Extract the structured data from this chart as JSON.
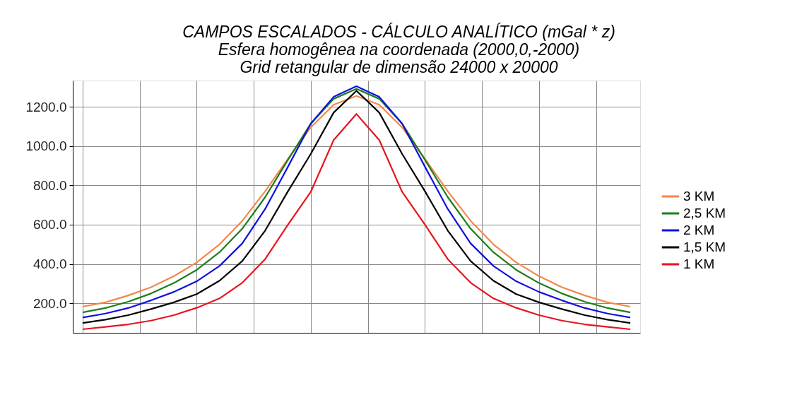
{
  "chart_data": {
    "type": "line",
    "title": "CAMPOS ESCALADOS - CÁLCULO ANALÍTICO (mGal * z)",
    "subtitle": "Esfera homogênea na coordenada (2000,0,-2000)\nGrid retangular de dimensão 24000 x 20000",
    "categories": [
      null,
      null,
      null,
      null,
      null,
      null,
      null,
      null,
      null,
      null,
      null,
      null,
      null,
      null,
      null,
      null,
      null,
      null,
      null,
      null,
      null,
      null,
      null,
      null,
      null
    ],
    "series": [
      {
        "name": "3 KM",
        "color": "#f4874b",
        "values": [
          183,
          205,
          240,
          282,
          338,
          408,
          500,
          620,
          770,
          935,
          1095,
          1210,
          1255,
          1210,
          1095,
          935,
          770,
          620,
          500,
          408,
          338,
          282,
          240,
          205,
          183
        ]
      },
      {
        "name": "2,5 KM",
        "color": "#1a7f1a",
        "values": [
          154,
          176,
          208,
          250,
          303,
          370,
          460,
          580,
          740,
          930,
          1114,
          1240,
          1291,
          1240,
          1114,
          930,
          740,
          580,
          460,
          370,
          303,
          250,
          208,
          176,
          154
        ]
      },
      {
        "name": "2 KM",
        "color": "#1010e0",
        "values": [
          128,
          148,
          176,
          215,
          258,
          312,
          390,
          505,
          680,
          895,
          1114,
          1250,
          1304,
          1250,
          1114,
          895,
          680,
          505,
          390,
          312,
          258,
          215,
          176,
          148,
          128
        ]
      },
      {
        "name": "1,5 KM",
        "color": "#000000",
        "values": [
          100,
          117,
          140,
          171,
          205,
          247,
          315,
          415,
          570,
          770,
          960,
          1170,
          1281,
          1170,
          960,
          770,
          570,
          415,
          315,
          247,
          205,
          171,
          140,
          117,
          100
        ]
      },
      {
        "name": "1 KM",
        "color": "#e8141e",
        "values": [
          68,
          80,
          93,
          112,
          140,
          177,
          225,
          305,
          425,
          600,
          767,
          1030,
          1163,
          1030,
          767,
          600,
          425,
          305,
          225,
          177,
          140,
          112,
          93,
          80,
          68
        ]
      }
    ],
    "ylim": [
      50,
      1333
    ],
    "yticks": [
      {
        "value": 200,
        "label": "200.0"
      },
      {
        "value": 400,
        "label": "400.0"
      },
      {
        "value": 600,
        "label": "600.0"
      },
      {
        "value": 800,
        "label": "800.0"
      },
      {
        "value": 1000,
        "label": "1000.0"
      },
      {
        "value": 1200,
        "label": "1200.0"
      }
    ],
    "grid": true,
    "legend": "right",
    "tick_labels": "y",
    "marker": "none",
    "line_style": "solid"
  }
}
